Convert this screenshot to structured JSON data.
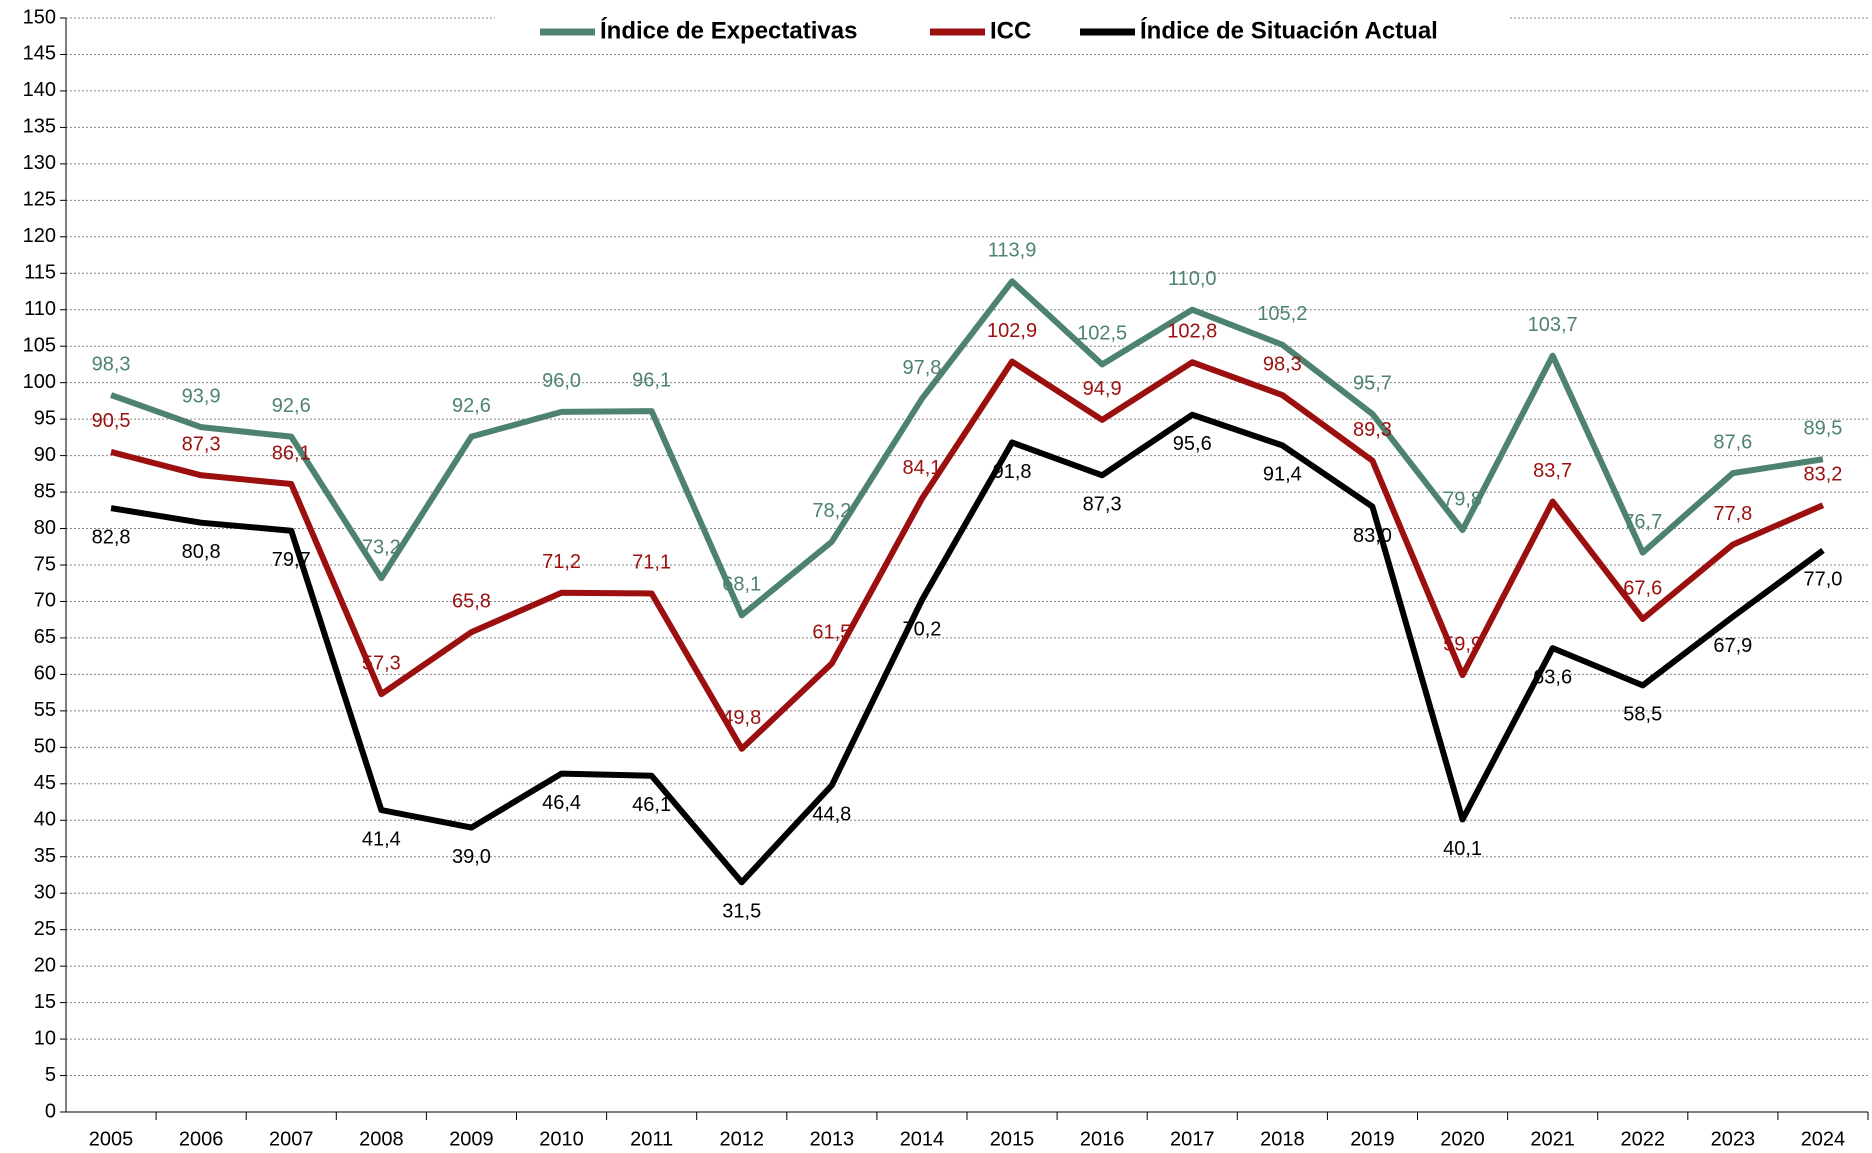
{
  "chart_data": {
    "type": "line",
    "categories": [
      "2005",
      "2006",
      "2007",
      "2008",
      "2009",
      "2010",
      "2011",
      "2012",
      "2013",
      "2014",
      "2015",
      "2016",
      "2017",
      "2018",
      "2019",
      "2020",
      "2021",
      "2022",
      "2023",
      "2024"
    ],
    "series": [
      {
        "name": "Índice de Expectativas",
        "color": "#4e8270",
        "values": [
          98.3,
          93.9,
          92.6,
          73.2,
          92.6,
          96.0,
          96.1,
          68.1,
          78.2,
          97.8,
          113.9,
          102.5,
          110.0,
          105.2,
          95.7,
          79.8,
          103.7,
          76.7,
          87.6,
          89.5
        ],
        "value_labels": [
          "98,3",
          "93,9",
          "92,6",
          "73,2",
          "92,6",
          "96,0",
          "96,1",
          "68,1",
          "78,2",
          "97,8",
          "113,9",
          "102,5",
          "110,0",
          "105,2",
          "95,7",
          "79,8",
          "103,7",
          "76,7",
          "87,6",
          "89,5"
        ]
      },
      {
        "name": "ICC",
        "color": "#9b0f0f",
        "values": [
          90.5,
          87.3,
          86.1,
          57.3,
          65.8,
          71.2,
          71.1,
          49.8,
          61.5,
          84.1,
          102.9,
          94.9,
          102.8,
          98.3,
          89.3,
          59.9,
          83.7,
          67.6,
          77.8,
          83.2
        ],
        "value_labels": [
          "90,5",
          "87,3",
          "86,1",
          "57,3",
          "65,8",
          "71,2",
          "71,1",
          "49,8",
          "61,5",
          "84,1",
          "102,9",
          "94,9",
          "102,8",
          "98,3",
          "89,3",
          "59,9",
          "83,7",
          "67,6",
          "77,8",
          "83,2"
        ]
      },
      {
        "name": "Índice de Situación Actual",
        "color": "#000000",
        "values": [
          82.8,
          80.8,
          79.7,
          41.4,
          39.0,
          46.4,
          46.1,
          31.5,
          44.8,
          70.2,
          91.8,
          87.3,
          95.6,
          91.4,
          83.0,
          40.1,
          63.6,
          58.5,
          67.9,
          77.0
        ],
        "value_labels": [
          "82,8",
          "80,8",
          "79,7",
          "41,4",
          "39,0",
          "46,4",
          "46,1",
          "31,5",
          "44,8",
          "70,2",
          "91,8",
          "87,3",
          "95,6",
          "91,4",
          "83,0",
          "40,1",
          "63,6",
          "58,5",
          "67,9",
          "77,0"
        ]
      }
    ],
    "ylim": [
      0,
      150
    ],
    "yticks": [
      0,
      5,
      10,
      15,
      20,
      25,
      30,
      35,
      40,
      45,
      50,
      55,
      60,
      65,
      70,
      75,
      80,
      85,
      90,
      95,
      100,
      105,
      110,
      115,
      120,
      125,
      130,
      135,
      140,
      145,
      150
    ],
    "grid": true,
    "legend": "top"
  }
}
